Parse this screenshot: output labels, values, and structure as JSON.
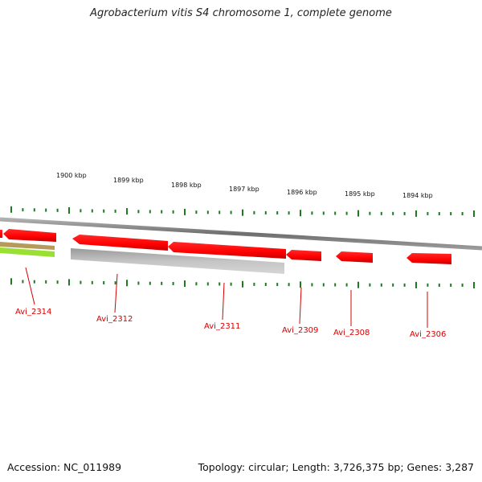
{
  "title": "Agrobacterium vitis S4 chromosome 1, complete genome",
  "accession_text": "Accession: NC_011989",
  "summary_text": "Topology: circular; Length: 3,726,375 bp; Genes: 3,287",
  "colors": {
    "forward_gene": "#ff0000",
    "reverse_gene_dark": "#cc0000",
    "pseudo_gene": "#b8b8b8",
    "rna_feature": "#99e033",
    "rna_feature_top": "#b59a5a",
    "genome_line": "#7a7a7a",
    "tick": "#1f7a1f",
    "label": "#d40000"
  },
  "scale_labels": [
    "1900 kbp",
    "1899 kbp",
    "1898 kbp",
    "1897 kbp",
    "1896 kbp",
    "1895 kbp",
    "1894 kbp"
  ],
  "genes": [
    {
      "name": "Avi_2314",
      "labeled": true
    },
    {
      "name": "Avi_2312",
      "labeled": true
    },
    {
      "name": "Avi_2311",
      "labeled": true
    },
    {
      "name": "Avi_2309",
      "labeled": true
    },
    {
      "name": "Avi_2308",
      "labeled": true
    },
    {
      "name": "Avi_2306",
      "labeled": true
    }
  ]
}
